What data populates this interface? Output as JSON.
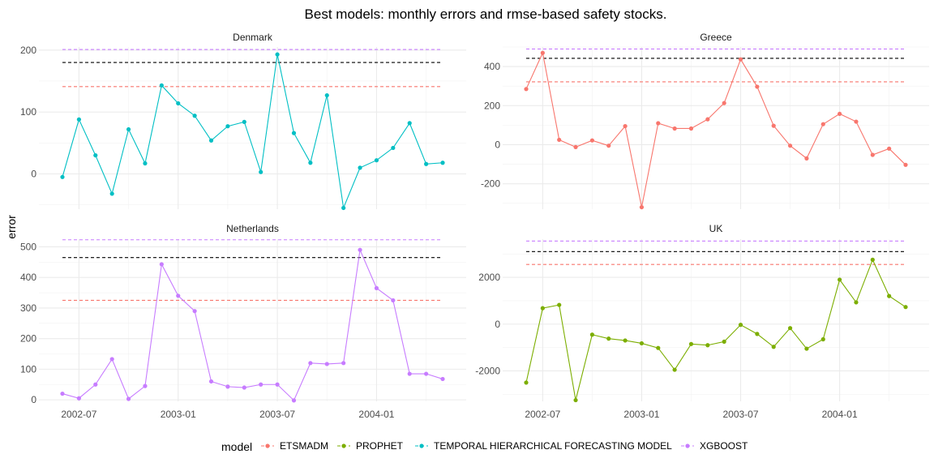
{
  "chart_data": {
    "type": "line",
    "title": "Best models: monthly errors and rmse-based safety stocks.",
    "ylabel": "error",
    "x": [
      "2002-06",
      "2002-07",
      "2002-08",
      "2002-09",
      "2002-10",
      "2002-11",
      "2002-12",
      "2003-01",
      "2003-02",
      "2003-03",
      "2003-04",
      "2003-05",
      "2003-06",
      "2003-07",
      "2003-08",
      "2003-09",
      "2003-10",
      "2003-11",
      "2003-12",
      "2004-01",
      "2004-02",
      "2004-03",
      "2004-04",
      "2004-05"
    ],
    "x_tick_labels": [
      "2002-07",
      "2003-01",
      "2003-07",
      "2004-01"
    ],
    "legend": {
      "title": "model",
      "entries": [
        {
          "name": "ETSMADM",
          "color": "#F8766D"
        },
        {
          "name": "PROPHET",
          "color": "#7CAE00"
        },
        {
          "name": "TEMPORAL HIERARCHICAL FORECASTING MODEL",
          "color": "#00BFC4"
        },
        {
          "name": "XGBOOST",
          "color": "#C77CFF"
        }
      ]
    },
    "panels": [
      {
        "name": "Denmark",
        "model": "TEMPORAL HIERARCHICAL FORECASTING MODEL",
        "color": "#00BFC4",
        "ylim": [
          -57,
          205
        ],
        "yticks": [
          0,
          100,
          200
        ],
        "values": [
          -5,
          88,
          30,
          -32,
          72,
          17,
          143,
          114,
          94,
          54,
          77,
          84,
          3,
          193,
          66,
          18,
          127,
          -55,
          10,
          22,
          42,
          82,
          16,
          18
        ],
        "safety_stocks": [
          {
            "model": "XGBOOST",
            "color": "#C77CFF",
            "value": 201
          },
          {
            "model": "TEMPORAL HIERARCHICAL FORECASTING MODEL",
            "color": "#000000",
            "value": 180
          },
          {
            "model": "ETSMADM",
            "color": "#F8766D",
            "value": 141
          }
        ]
      },
      {
        "name": "Greece",
        "model": "ETSMADM",
        "color": "#F8766D",
        "ylim": [
          -330,
          500
        ],
        "yticks": [
          -200,
          0,
          200,
          400
        ],
        "values": [
          285,
          470,
          25,
          -12,
          22,
          -5,
          95,
          -320,
          110,
          83,
          83,
          130,
          213,
          437,
          297,
          97,
          -5,
          -70,
          105,
          158,
          118,
          -52,
          -20,
          -103
        ],
        "safety_stocks": [
          {
            "model": "XGBOOST",
            "color": "#C77CFF",
            "value": 490
          },
          {
            "model": "TEMPORAL HIERARCHICAL FORECASTING MODEL",
            "color": "#000000",
            "value": 442
          },
          {
            "model": "ETSMADM",
            "color": "#F8766D",
            "value": 322
          }
        ]
      },
      {
        "name": "Netherlands",
        "model": "XGBOOST",
        "color": "#C77CFF",
        "ylim": [
          -5,
          525
        ],
        "yticks": [
          0,
          100,
          200,
          300,
          400,
          500
        ],
        "values": [
          20,
          5,
          50,
          133,
          3,
          45,
          443,
          340,
          290,
          60,
          43,
          40,
          50,
          50,
          -2,
          120,
          117,
          120,
          490,
          365,
          325,
          85,
          85,
          68
        ],
        "safety_stocks": [
          {
            "model": "XGBOOST",
            "color": "#C77CFF",
            "value": 523
          },
          {
            "model": "TEMPORAL HIERARCHICAL FORECASTING MODEL",
            "color": "#000000",
            "value": 465
          },
          {
            "model": "ETSMADM",
            "color": "#F8766D",
            "value": 325
          }
        ]
      },
      {
        "name": "UK",
        "model": "PROPHET",
        "color": "#7CAE00",
        "ylim": [
          -3300,
          3630
        ],
        "yticks": [
          -2000,
          0,
          2000
        ],
        "values": [
          -2500,
          680,
          820,
          -3250,
          -450,
          -620,
          -700,
          -820,
          -1020,
          -1950,
          -850,
          -900,
          -750,
          -30,
          -420,
          -970,
          -170,
          -1050,
          -650,
          1900,
          930,
          2750,
          1200,
          730
        ],
        "safety_stocks": [
          {
            "model": "XGBOOST",
            "color": "#C77CFF",
            "value": 3550
          },
          {
            "model": "TEMPORAL HIERARCHICAL FORECASTING MODEL",
            "color": "#000000",
            "value": 3100
          },
          {
            "model": "ETSMADM",
            "color": "#F8766D",
            "value": 2550
          }
        ]
      }
    ],
    "grid": true
  }
}
